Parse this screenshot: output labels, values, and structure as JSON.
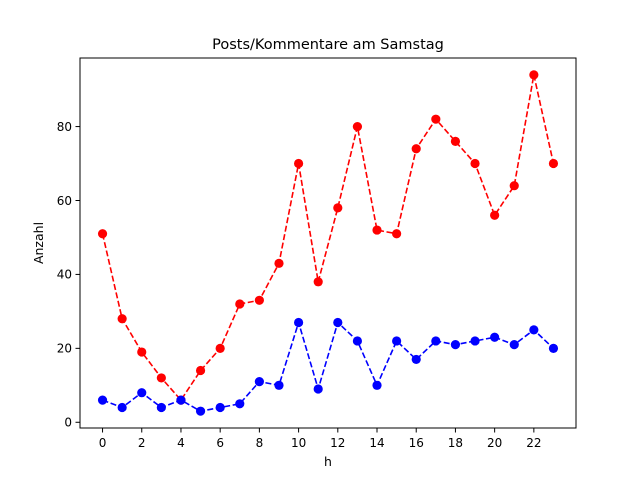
{
  "chart_data": {
    "type": "line",
    "title": "Posts/Kommentare am Samstag",
    "xlabel": "h",
    "ylabel": "Anzahl",
    "xlim": [
      -1.15,
      24.15
    ],
    "ylim": [
      -1.55,
      98.55
    ],
    "xticks": [
      0,
      2,
      4,
      6,
      8,
      10,
      12,
      14,
      16,
      18,
      20,
      22
    ],
    "yticks": [
      0,
      20,
      40,
      60,
      80
    ],
    "grid": false,
    "x": [
      0,
      1,
      2,
      3,
      4,
      5,
      6,
      7,
      8,
      9,
      10,
      11,
      12,
      13,
      14,
      15,
      16,
      17,
      18,
      19,
      20,
      21,
      22,
      23
    ],
    "series": [
      {
        "color": "#ff0000",
        "style": "dashed",
        "marker": "circle",
        "values": [
          51,
          28,
          19,
          12,
          6,
          14,
          20,
          32,
          33,
          43,
          70,
          38,
          58,
          80,
          52,
          51,
          74,
          82,
          76,
          70,
          56,
          64,
          94,
          70
        ]
      },
      {
        "color": "#0000ff",
        "style": "dashed",
        "marker": "circle",
        "values": [
          6,
          4,
          8,
          4,
          6,
          3,
          4,
          5,
          11,
          10,
          27,
          9,
          27,
          22,
          10,
          22,
          17,
          22,
          21,
          22,
          23,
          21,
          25,
          20
        ]
      }
    ]
  }
}
